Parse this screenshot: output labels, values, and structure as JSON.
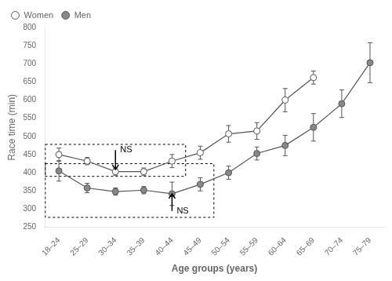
{
  "chart_data": {
    "type": "line",
    "categories": [
      "18–24",
      "25–29",
      "30–34",
      "35–39",
      "40–44",
      "45–49",
      "50–54",
      "55–59",
      "60–64",
      "65–69",
      "70–74",
      "75–79"
    ],
    "series": [
      {
        "name": "Women",
        "color": "#ffffff",
        "marker": "circle",
        "values": [
          450,
          432,
          403,
          403,
          432,
          455,
          507,
          515,
          600,
          662,
          null,
          null
        ],
        "errors": [
          18,
          10,
          10,
          10,
          18,
          18,
          23,
          23,
          32,
          18,
          null,
          null
        ]
      },
      {
        "name": "Men",
        "color": "#888888",
        "marker": "circle",
        "values": [
          405,
          358,
          348,
          352,
          342,
          368,
          400,
          453,
          475,
          525,
          590,
          703
        ],
        "errors": [
          28,
          13,
          10,
          10,
          32,
          18,
          18,
          18,
          28,
          38,
          38,
          55
        ]
      }
    ],
    "color": "#555555",
    "xlabel": "Age groups (years)",
    "ylabel": "Race time (min)",
    "ylim": [
      250,
      800
    ],
    "yticks": [
      250,
      300,
      350,
      400,
      450,
      500,
      550,
      600,
      650,
      700,
      750,
      800
    ],
    "grid": false,
    "legend": "upper left",
    "annotations": [
      {
        "text": "NS",
        "box": {
          "x": [
            "18–24",
            "40–44"
          ],
          "y": [
            390,
            478
          ]
        },
        "arrow": {
          "x": "30–34",
          "y": [
            462,
            409
          ]
        }
      },
      {
        "text": "NS",
        "box": {
          "x": [
            "18–24",
            "45–49"
          ],
          "y": [
            277,
            425
          ]
        },
        "arrow": {
          "x": "40–44",
          "y": [
            295,
            342
          ]
        }
      }
    ]
  }
}
